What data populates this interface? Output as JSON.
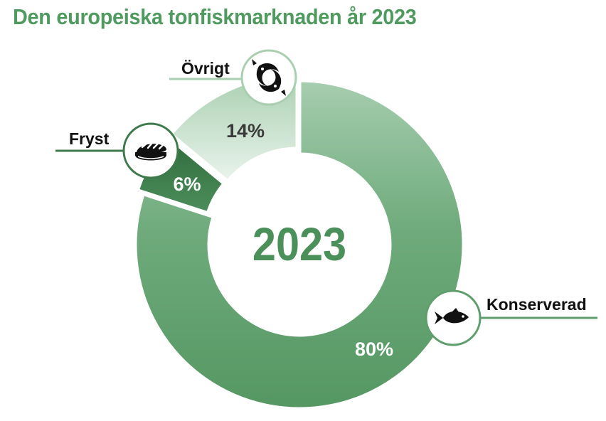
{
  "title": "Den europeiska tonfiskmarknaden år 2023",
  "chart_data": {
    "type": "donut",
    "title": "Den europeiska tonfiskmarknaden år 2023",
    "center_label": "2023",
    "slices": [
      {
        "label": "Konserverad",
        "value": 80,
        "value_label": "80%",
        "icon": "fish-icon",
        "color": "#5e9e6c"
      },
      {
        "label": "Fryst",
        "value": 6,
        "value_label": "6%",
        "icon": "sushi-icon",
        "color": "#3f7a4c"
      },
      {
        "label": "Övrigt",
        "value": 14,
        "value_label": "14%",
        "icon": "yin-yang-fish-icon",
        "color": "#c9e1cd"
      }
    ]
  },
  "colors": {
    "title": "#4f9a5e",
    "center_label": "#4b8f5a",
    "inner_value_text": "#3a3a3a",
    "outer_value_text": "#ffffff"
  }
}
